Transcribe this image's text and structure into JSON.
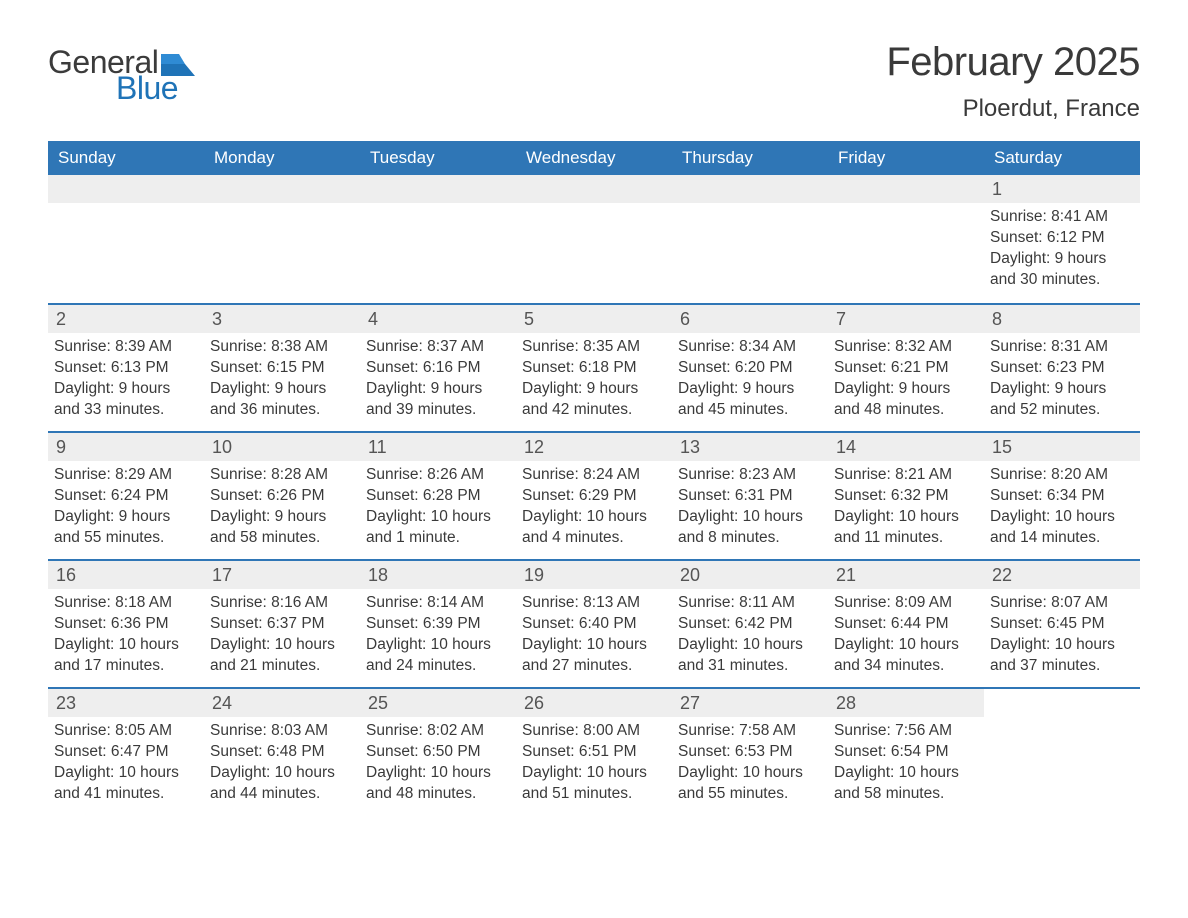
{
  "brand": {
    "word1": "General",
    "word2": "Blue",
    "flag_color": "#1f73b7"
  },
  "title": "February 2025",
  "location": "Ploerdut, France",
  "colors": {
    "header_bg": "#2f76b6",
    "header_text": "#ffffff",
    "daynum_bg": "#eeeeee",
    "week_border": "#2f76b6",
    "body_text": "#3a3a3a",
    "page_bg": "#ffffff",
    "logo_gray": "#3b3b3b",
    "logo_blue": "#1f73b7"
  },
  "typography": {
    "title_fontsize": 40,
    "location_fontsize": 24,
    "dayheader_fontsize": 17,
    "daynum_fontsize": 18,
    "body_fontsize": 15.5,
    "font_family": "Arial"
  },
  "day_headers": [
    "Sunday",
    "Monday",
    "Tuesday",
    "Wednesday",
    "Thursday",
    "Friday",
    "Saturday"
  ],
  "weeks": [
    [
      null,
      null,
      null,
      null,
      null,
      null,
      {
        "n": "1",
        "sunrise": "Sunrise: 8:41 AM",
        "sunset": "Sunset: 6:12 PM",
        "day1": "Daylight: 9 hours",
        "day2": "and 30 minutes."
      }
    ],
    [
      {
        "n": "2",
        "sunrise": "Sunrise: 8:39 AM",
        "sunset": "Sunset: 6:13 PM",
        "day1": "Daylight: 9 hours",
        "day2": "and 33 minutes."
      },
      {
        "n": "3",
        "sunrise": "Sunrise: 8:38 AM",
        "sunset": "Sunset: 6:15 PM",
        "day1": "Daylight: 9 hours",
        "day2": "and 36 minutes."
      },
      {
        "n": "4",
        "sunrise": "Sunrise: 8:37 AM",
        "sunset": "Sunset: 6:16 PM",
        "day1": "Daylight: 9 hours",
        "day2": "and 39 minutes."
      },
      {
        "n": "5",
        "sunrise": "Sunrise: 8:35 AM",
        "sunset": "Sunset: 6:18 PM",
        "day1": "Daylight: 9 hours",
        "day2": "and 42 minutes."
      },
      {
        "n": "6",
        "sunrise": "Sunrise: 8:34 AM",
        "sunset": "Sunset: 6:20 PM",
        "day1": "Daylight: 9 hours",
        "day2": "and 45 minutes."
      },
      {
        "n": "7",
        "sunrise": "Sunrise: 8:32 AM",
        "sunset": "Sunset: 6:21 PM",
        "day1": "Daylight: 9 hours",
        "day2": "and 48 minutes."
      },
      {
        "n": "8",
        "sunrise": "Sunrise: 8:31 AM",
        "sunset": "Sunset: 6:23 PM",
        "day1": "Daylight: 9 hours",
        "day2": "and 52 minutes."
      }
    ],
    [
      {
        "n": "9",
        "sunrise": "Sunrise: 8:29 AM",
        "sunset": "Sunset: 6:24 PM",
        "day1": "Daylight: 9 hours",
        "day2": "and 55 minutes."
      },
      {
        "n": "10",
        "sunrise": "Sunrise: 8:28 AM",
        "sunset": "Sunset: 6:26 PM",
        "day1": "Daylight: 9 hours",
        "day2": "and 58 minutes."
      },
      {
        "n": "11",
        "sunrise": "Sunrise: 8:26 AM",
        "sunset": "Sunset: 6:28 PM",
        "day1": "Daylight: 10 hours",
        "day2": "and 1 minute."
      },
      {
        "n": "12",
        "sunrise": "Sunrise: 8:24 AM",
        "sunset": "Sunset: 6:29 PM",
        "day1": "Daylight: 10 hours",
        "day2": "and 4 minutes."
      },
      {
        "n": "13",
        "sunrise": "Sunrise: 8:23 AM",
        "sunset": "Sunset: 6:31 PM",
        "day1": "Daylight: 10 hours",
        "day2": "and 8 minutes."
      },
      {
        "n": "14",
        "sunrise": "Sunrise: 8:21 AM",
        "sunset": "Sunset: 6:32 PM",
        "day1": "Daylight: 10 hours",
        "day2": "and 11 minutes."
      },
      {
        "n": "15",
        "sunrise": "Sunrise: 8:20 AM",
        "sunset": "Sunset: 6:34 PM",
        "day1": "Daylight: 10 hours",
        "day2": "and 14 minutes."
      }
    ],
    [
      {
        "n": "16",
        "sunrise": "Sunrise: 8:18 AM",
        "sunset": "Sunset: 6:36 PM",
        "day1": "Daylight: 10 hours",
        "day2": "and 17 minutes."
      },
      {
        "n": "17",
        "sunrise": "Sunrise: 8:16 AM",
        "sunset": "Sunset: 6:37 PM",
        "day1": "Daylight: 10 hours",
        "day2": "and 21 minutes."
      },
      {
        "n": "18",
        "sunrise": "Sunrise: 8:14 AM",
        "sunset": "Sunset: 6:39 PM",
        "day1": "Daylight: 10 hours",
        "day2": "and 24 minutes."
      },
      {
        "n": "19",
        "sunrise": "Sunrise: 8:13 AM",
        "sunset": "Sunset: 6:40 PM",
        "day1": "Daylight: 10 hours",
        "day2": "and 27 minutes."
      },
      {
        "n": "20",
        "sunrise": "Sunrise: 8:11 AM",
        "sunset": "Sunset: 6:42 PM",
        "day1": "Daylight: 10 hours",
        "day2": "and 31 minutes."
      },
      {
        "n": "21",
        "sunrise": "Sunrise: 8:09 AM",
        "sunset": "Sunset: 6:44 PM",
        "day1": "Daylight: 10 hours",
        "day2": "and 34 minutes."
      },
      {
        "n": "22",
        "sunrise": "Sunrise: 8:07 AM",
        "sunset": "Sunset: 6:45 PM",
        "day1": "Daylight: 10 hours",
        "day2": "and 37 minutes."
      }
    ],
    [
      {
        "n": "23",
        "sunrise": "Sunrise: 8:05 AM",
        "sunset": "Sunset: 6:47 PM",
        "day1": "Daylight: 10 hours",
        "day2": "and 41 minutes."
      },
      {
        "n": "24",
        "sunrise": "Sunrise: 8:03 AM",
        "sunset": "Sunset: 6:48 PM",
        "day1": "Daylight: 10 hours",
        "day2": "and 44 minutes."
      },
      {
        "n": "25",
        "sunrise": "Sunrise: 8:02 AM",
        "sunset": "Sunset: 6:50 PM",
        "day1": "Daylight: 10 hours",
        "day2": "and 48 minutes."
      },
      {
        "n": "26",
        "sunrise": "Sunrise: 8:00 AM",
        "sunset": "Sunset: 6:51 PM",
        "day1": "Daylight: 10 hours",
        "day2": "and 51 minutes."
      },
      {
        "n": "27",
        "sunrise": "Sunrise: 7:58 AM",
        "sunset": "Sunset: 6:53 PM",
        "day1": "Daylight: 10 hours",
        "day2": "and 55 minutes."
      },
      {
        "n": "28",
        "sunrise": "Sunrise: 7:56 AM",
        "sunset": "Sunset: 6:54 PM",
        "day1": "Daylight: 10 hours",
        "day2": "and 58 minutes."
      },
      null
    ]
  ]
}
